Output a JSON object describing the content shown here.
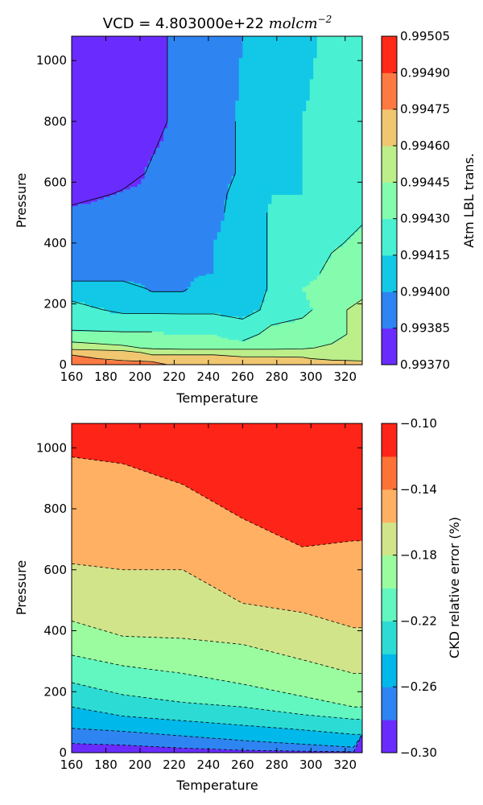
{
  "chart_data": [
    {
      "type": "contour",
      "title_text": "VCD = 4.803000e+22 ",
      "title_math": "molcm",
      "title_exp": "−2",
      "xlabel": "Temperature",
      "ylabel": "Pressure",
      "xlim": [
        160,
        330
      ],
      "ylim": [
        0,
        1080
      ],
      "x_ticks": [
        "160",
        "180",
        "200",
        "220",
        "240",
        "260",
        "280",
        "300",
        "320"
      ],
      "y_ticks": [
        "0",
        "200",
        "400",
        "600",
        "800",
        "1000"
      ],
      "colorbar_label": "Atm LBL trans.",
      "colorbar_ticks": [
        "0.99370",
        "0.99385",
        "0.99400",
        "0.99415",
        "0.99430",
        "0.99445",
        "0.99460",
        "0.99475",
        "0.99490",
        "0.99505"
      ],
      "colorbar_colors": [
        "#6a2cfe",
        "#2e85f2",
        "#12c8e6",
        "#4af0d2",
        "#84fcad",
        "#bcee8a",
        "#f0c670",
        "#ff7a42",
        "#ff2a18"
      ],
      "levels": [
        0.9937,
        0.99385,
        0.994,
        0.99415,
        0.9943,
        0.99445,
        0.9946,
        0.99475,
        0.9949,
        0.99505
      ],
      "contour_lines": "solid",
      "x": [
        160,
        190,
        207,
        225,
        243,
        260,
        277,
        295,
        312,
        330
      ],
      "y": [
        0,
        20,
        40,
        55,
        100,
        180,
        250,
        300,
        400,
        500,
        560,
        630,
        800,
        1080
      ],
      "z": [
        [
          0.9949,
          0.9949,
          0.99482,
          0.99468,
          0.99468,
          0.99468,
          0.99468,
          0.99468,
          0.99475,
          0.99468
        ],
        [
          0.99482,
          0.99468,
          0.99468,
          0.99468,
          0.99468,
          0.99462,
          0.99462,
          0.99462,
          0.99455,
          0.99455
        ],
        [
          0.9947,
          0.99468,
          0.99455,
          0.99455,
          0.99455,
          0.99455,
          0.99455,
          0.99453,
          0.99452,
          0.9945
        ],
        [
          0.99455,
          0.99448,
          0.99443,
          0.99441,
          0.99441,
          0.99441,
          0.99441,
          0.99443,
          0.99448,
          0.99452
        ],
        [
          0.99432,
          0.99432,
          0.99432,
          0.9943,
          0.9943,
          0.9942,
          0.99438,
          0.99438,
          0.99438,
          0.99452
        ],
        [
          0.9942,
          0.99412,
          0.99412,
          0.99412,
          0.99412,
          0.99412,
          0.99417,
          0.99426,
          0.99438,
          0.99452
        ],
        [
          0.99408,
          0.99408,
          0.99398,
          0.99398,
          0.9941,
          0.9941,
          0.99416,
          0.9943,
          0.99438,
          0.99438
        ],
        [
          0.99392,
          0.99392,
          0.99398,
          0.99398,
          0.994,
          0.9941,
          0.99416,
          0.99424,
          0.99434,
          0.99438
        ],
        [
          0.99392,
          0.99392,
          0.99392,
          0.99398,
          0.994,
          0.9941,
          0.99416,
          0.99416,
          0.99428,
          0.99433
        ],
        [
          0.99392,
          0.99392,
          0.99392,
          0.99392,
          0.99394,
          0.9941,
          0.99416,
          0.99416,
          0.99424,
          0.99428
        ],
        [
          0.99375,
          0.99388,
          0.99388,
          0.99392,
          0.99394,
          0.99407,
          0.99415,
          0.99415,
          0.99424,
          0.99424
        ],
        [
          0.99375,
          0.99375,
          0.99388,
          0.99392,
          0.99394,
          0.99402,
          0.99412,
          0.99415,
          0.99422,
          0.99424
        ],
        [
          0.99375,
          0.99375,
          0.99378,
          0.99392,
          0.99394,
          0.99402,
          0.99406,
          0.99415,
          0.9942,
          0.99424
        ],
        [
          0.99375,
          0.99375,
          0.99378,
          0.99392,
          0.99392,
          0.994,
          0.99406,
          0.9941,
          0.9942,
          0.9942
        ]
      ]
    },
    {
      "type": "contour",
      "xlabel": "Temperature",
      "ylabel": "Pressure",
      "xlim": [
        160,
        330
      ],
      "ylim": [
        0,
        1080
      ],
      "x_ticks": [
        "160",
        "180",
        "200",
        "220",
        "240",
        "260",
        "280",
        "300",
        "320"
      ],
      "y_ticks": [
        "0",
        "200",
        "400",
        "600",
        "800",
        "1000"
      ],
      "colorbar_label": "CKD relative error (%)",
      "colorbar_ticks": [
        "−0.30",
        "−0.26",
        "−0.22",
        "−0.18",
        "−0.14",
        "−0.10"
      ],
      "colorbar_colors": [
        "#6a2cfe",
        "#2e85f2",
        "#00b8ea",
        "#2cdcd4",
        "#62f6c0",
        "#9afc9e",
        "#d2e48a",
        "#ffb062",
        "#ff7236",
        "#ff2418"
      ],
      "levels": [
        -0.3,
        -0.28,
        -0.26,
        -0.24,
        -0.22,
        -0.2,
        -0.18,
        -0.16,
        -0.14,
        -0.12,
        -0.1
      ],
      "contour_lines": "dashed",
      "x": [
        160,
        190,
        225,
        260,
        295,
        325,
        330
      ],
      "y": [
        0,
        1080
      ],
      "boundaries": [
        {
          "level": -0.28,
          "y": [
            30,
            25,
            15,
            8,
            5,
            3,
            60
          ]
        },
        {
          "level": -0.26,
          "y": [
            80,
            70,
            55,
            40,
            28,
            18,
            60
          ]
        },
        {
          "level": -0.24,
          "y": [
            150,
            120,
            105,
            90,
            75,
            60,
            60
          ]
        },
        {
          "level": -0.22,
          "y": [
            230,
            190,
            165,
            150,
            125,
            110,
            110
          ]
        },
        {
          "level": -0.2,
          "y": [
            320,
            285,
            260,
            225,
            185,
            150,
            150
          ]
        },
        {
          "level": -0.18,
          "y": [
            432,
            382,
            375,
            355,
            305,
            260,
            260
          ]
        },
        {
          "level": -0.16,
          "y": [
            620,
            600,
            600,
            490,
            460,
            410,
            410
          ]
        },
        {
          "level": -0.14,
          "y": [
            970,
            948,
            880,
            768,
            675,
            695,
            695
          ]
        }
      ]
    }
  ]
}
